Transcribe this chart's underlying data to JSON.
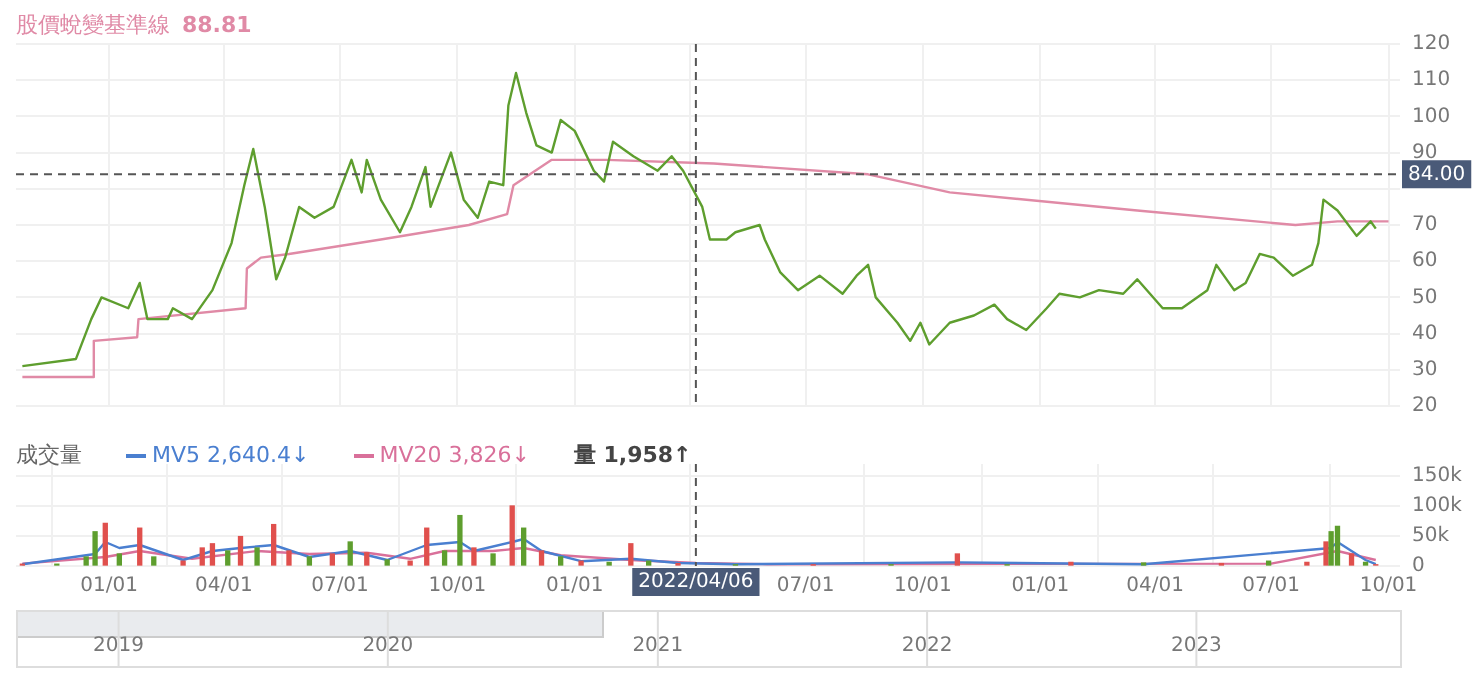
{
  "chart_data": [
    {
      "type": "line",
      "legend": "top left",
      "grid": true,
      "tick_labels": "y",
      "xlim": [
        "2020-10-20",
        "2023-10-10"
      ],
      "xticks": [
        {
          "value": "2021-01-01",
          "label": null
        },
        {
          "value": "2021-04-01",
          "label": null
        },
        {
          "value": "2021-07-01",
          "label": null
        },
        {
          "value": "2021-10-01",
          "label": null
        },
        {
          "value": "2022-01-01",
          "label": null
        },
        {
          "value": "2022-04-01",
          "label": null
        },
        {
          "value": "2022-07-01",
          "label": null
        },
        {
          "value": "2022-10-01",
          "label": null
        },
        {
          "value": "2023-01-01",
          "label": null
        },
        {
          "value": "2023-04-01",
          "label": null
        },
        {
          "value": "2023-07-01",
          "label": null
        },
        {
          "value": "2023-10-01",
          "label": null
        }
      ],
      "ylim": [
        20,
        120
      ],
      "yticks": [
        20,
        30,
        40,
        50,
        60,
        70,
        {
          "value": 80,
          "label": null
        },
        90,
        100,
        110,
        120
      ],
      "annotations": [
        "88.81"
      ],
      "ref_lines": [
        {
          "axis": "x",
          "value": "2022-04-06",
          "label": null,
          "line_style": "dashed"
        },
        {
          "axis": "y",
          "value": 84,
          "label": "84.00",
          "line_style": "dashed"
        }
      ],
      "series": [
        {
          "color": "#5e9e2e",
          "x": [
            "2020-10-25",
            "2020-12-06",
            "2020-12-18",
            "2020-12-26",
            "2021-01-16",
            "2021-01-25",
            "2021-01-31",
            "2021-02-16",
            "2021-02-20",
            "2021-03-07",
            "2021-03-23",
            "2021-04-07",
            "2021-04-17",
            "2021-04-24",
            "2021-05-03",
            "2021-05-12",
            "2021-05-19",
            "2021-05-30",
            "2021-06-11",
            "2021-06-26",
            "2021-07-10",
            "2021-07-18",
            "2021-07-22",
            "2021-08-02",
            "2021-08-17",
            "2021-08-26",
            "2021-09-06",
            "2021-09-10",
            "2021-09-26",
            "2021-10-06",
            "2021-10-17",
            "2021-10-26",
            "2021-11-06",
            "2021-11-10",
            "2021-11-16",
            "2021-11-24",
            "2021-12-02",
            "2021-12-14",
            "2021-12-21",
            "2022-01-01",
            "2022-01-16",
            "2022-01-24",
            "2022-01-31",
            "2022-02-16",
            "2022-03-07",
            "2022-03-18",
            "2022-03-27",
            "2022-04-11",
            "2022-04-17",
            "2022-04-30",
            "2022-05-07",
            "2022-05-26",
            "2022-05-30",
            "2022-06-11",
            "2022-06-25",
            "2022-07-12",
            "2022-07-30",
            "2022-08-10",
            "2022-08-19",
            "2022-08-25",
            "2022-09-11",
            "2022-09-21",
            "2022-09-29",
            "2022-10-06",
            "2022-10-22",
            "2022-11-10",
            "2022-11-26",
            "2022-12-06",
            "2022-12-21",
            "2023-01-06",
            "2023-01-16",
            "2023-02-01",
            "2023-02-16",
            "2023-03-07",
            "2023-03-18",
            "2023-04-07",
            "2023-04-22",
            "2023-05-12",
            "2023-05-19",
            "2023-06-02",
            "2023-06-11",
            "2023-06-22",
            "2023-07-03",
            "2023-07-18",
            "2023-08-02",
            "2023-08-07",
            "2023-08-11",
            "2023-08-22",
            "2023-09-06",
            "2023-09-17",
            "2023-09-21"
          ],
          "values": [
            31,
            33,
            44,
            50,
            47,
            54,
            44,
            44,
            47,
            44,
            52,
            65,
            81,
            91,
            75,
            55,
            61,
            75,
            72,
            75,
            88,
            79,
            88,
            77,
            68,
            75,
            86,
            75,
            90,
            77,
            72,
            82,
            81,
            103,
            112,
            101,
            92,
            90,
            99,
            96,
            85,
            82,
            93,
            89,
            85,
            89,
            85,
            75,
            66,
            66,
            68,
            70,
            66,
            57,
            52,
            56,
            51,
            56,
            59,
            50,
            43,
            38,
            43,
            37,
            43,
            45,
            48,
            44,
            41,
            47,
            51,
            50,
            52,
            51,
            55,
            47,
            47,
            52,
            59,
            52,
            54,
            62,
            61,
            56,
            59,
            65,
            77,
            74,
            67,
            71,
            69
          ]
        },
        {
          "name": "股價蛻變基準線",
          "color": "#e08aa6",
          "x": [
            "2020-10-25",
            "2020-12-19",
            "2020-12-20",
            "2021-01-23",
            "2021-01-24",
            "2021-04-18",
            "2021-04-19",
            "2021-04-30",
            "2021-05-22",
            "2021-08-02",
            "2021-10-10",
            "2021-11-09",
            "2021-11-14",
            "2021-12-14",
            "2022-01-26",
            "2022-04-20",
            "2022-08-19",
            "2022-10-22",
            "2023-03-18",
            "2023-07-20",
            "2023-08-22",
            "2023-10-01"
          ],
          "values": [
            28,
            28,
            38,
            39,
            44,
            47,
            58,
            61,
            62,
            66,
            70,
            73,
            81,
            88,
            88,
            87,
            84,
            79,
            74,
            70,
            71,
            71
          ]
        }
      ]
    },
    {
      "type": "bar",
      "title": "成交量",
      "legend": "top left",
      "grid": true,
      "xlim": [
        "2020-10-20",
        "2023-10-10"
      ],
      "xticks": [
        {
          "value": "2021-01-01",
          "label": "01/01"
        },
        {
          "value": "2021-04-01",
          "label": "04/01"
        },
        {
          "value": "2021-07-01",
          "label": "07/01"
        },
        {
          "value": "2021-10-01",
          "label": "10/01"
        },
        {
          "value": "2022-01-01",
          "label": "01/01"
        },
        {
          "value": "2022-07-01",
          "label": "07/01"
        },
        {
          "value": "2022-10-01",
          "label": "10/01"
        },
        {
          "value": "2023-01-01",
          "label": "01/01"
        },
        {
          "value": "2023-04-01",
          "label": "04/01"
        },
        {
          "value": "2023-07-01",
          "label": "07/01"
        },
        {
          "value": "2023-10-01",
          "label": "10/01"
        }
      ],
      "ylim": [
        0,
        170000
      ],
      "yticks": [
        0,
        {
          "value": 50000,
          "label": "50k"
        },
        {
          "value": 100000,
          "label": "100k"
        },
        {
          "value": 150000,
          "label": "150k"
        }
      ],
      "annotations": [
        "量 1,958↑"
      ],
      "x2lim": [
        "2018-08-15",
        "2023-10-04"
      ],
      "x2ticks": [
        {
          "value": "2019-01-01",
          "label": "2019"
        },
        {
          "value": "2020-01-01",
          "label": "2020"
        },
        {
          "value": "2021-01-01",
          "label": "2021"
        },
        {
          "value": "2022-01-01",
          "label": "2022"
        },
        {
          "value": "2023-01-01",
          "label": "2023"
        }
      ],
      "ref_lines": [
        {
          "axis": "x",
          "value": "2022-04-06",
          "label": "2022/04/06",
          "line_style": "dashed"
        }
      ],
      "series": [
        {
          "name": "MV5 2,640.4↓",
          "type": "line",
          "color": "#4a7fd0",
          "x": [
            "2020-10-25",
            "2020-12-21",
            "2020-12-29",
            "2021-01-09",
            "2021-01-25",
            "2021-02-28",
            "2021-03-23",
            "2021-04-14",
            "2021-05-10",
            "2021-06-07",
            "2021-07-09",
            "2021-08-07",
            "2021-09-07",
            "2021-10-03",
            "2021-10-14",
            "2021-11-13",
            "2021-11-22",
            "2021-12-06",
            "2022-01-06",
            "2022-02-14",
            "2022-03-23",
            "2022-05-07",
            "2022-10-28",
            "2023-03-23",
            "2023-08-17",
            "2023-08-22",
            "2023-09-13",
            "2023-09-21"
          ],
          "values": [
            3000,
            20000,
            40000,
            30000,
            35000,
            10000,
            25000,
            30000,
            35000,
            15000,
            25000,
            10000,
            35000,
            40000,
            25000,
            40000,
            45000,
            25000,
            8000,
            12000,
            5000,
            3000,
            6000,
            3000,
            30000,
            40000,
            10000,
            3000
          ]
        },
        {
          "name": "MV20 3,826↓",
          "type": "line",
          "color": "#d9709a",
          "x": [
            "2020-10-25",
            "2020-12-29",
            "2021-01-25",
            "2021-03-07",
            "2021-04-27",
            "2021-06-07",
            "2021-07-22",
            "2021-08-25",
            "2021-09-21",
            "2021-10-29",
            "2021-11-22",
            "2021-12-21",
            "2022-02-14",
            "2022-04-06",
            "2022-06-01",
            "2023-07-01",
            "2023-08-22",
            "2023-09-21"
          ],
          "values": [
            4000,
            15000,
            25000,
            12000,
            25000,
            20000,
            22000,
            12000,
            25000,
            25000,
            30000,
            18000,
            10000,
            5000,
            3000,
            4000,
            25000,
            10000
          ]
        },
        {
          "type": "bar",
          "x": [
            "2020-10-25",
            "2020-11-21",
            "2020-12-14",
            "2020-12-21",
            "2020-12-29",
            "2021-01-09",
            "2021-01-25",
            "2021-02-05",
            "2021-02-28",
            "2021-03-15",
            "2021-03-23",
            "2021-04-04",
            "2021-04-14",
            "2021-04-27",
            "2021-05-10",
            "2021-05-22",
            "2021-06-07",
            "2021-06-25",
            "2021-07-09",
            "2021-07-22",
            "2021-08-07",
            "2021-08-25",
            "2021-09-07",
            "2021-09-21",
            "2021-10-03",
            "2021-10-14",
            "2021-10-29",
            "2021-11-13",
            "2021-11-22",
            "2021-12-06",
            "2021-12-21",
            "2022-01-06",
            "2022-01-28",
            "2022-02-14",
            "2022-02-28",
            "2022-03-23",
            "2022-05-07",
            "2022-07-07",
            "2022-09-06",
            "2022-10-28",
            "2022-12-06",
            "2023-01-25",
            "2023-03-23",
            "2023-05-23",
            "2023-06-29",
            "2023-07-29",
            "2023-08-13",
            "2023-08-17",
            "2023-08-22",
            "2023-09-02",
            "2023-09-13",
            "2023-09-21"
          ],
          "values": [
            3000,
            3000,
            15000,
            57000,
            71000,
            20000,
            63000,
            15000,
            8000,
            30000,
            37000,
            25000,
            49000,
            30000,
            69000,
            25000,
            15000,
            20000,
            40000,
            22000,
            10000,
            8000,
            63000,
            25000,
            84000,
            30000,
            20000,
            100000,
            63000,
            25000,
            15000,
            8000,
            6000,
            37000,
            8000,
            4000,
            2000,
            2000,
            2000,
            20000,
            2000,
            6000,
            5000,
            4000,
            8000,
            6000,
            40000,
            57000,
            66000,
            20000,
            6000,
            2000
          ],
          "colors": [
            "#e0504d",
            "#5e9e2e",
            "#5e9e2e",
            "#5e9e2e",
            "#e0504d",
            "#5e9e2e",
            "#e0504d",
            "#5e9e2e",
            "#e0504d",
            "#e0504d",
            "#e0504d",
            "#5e9e2e",
            "#e0504d",
            "#5e9e2e",
            "#e0504d",
            "#e0504d",
            "#5e9e2e",
            "#e0504d",
            "#5e9e2e",
            "#e0504d",
            "#5e9e2e",
            "#e0504d",
            "#e0504d",
            "#5e9e2e",
            "#5e9e2e",
            "#e0504d",
            "#5e9e2e",
            "#e0504d",
            "#5e9e2e",
            "#e0504d",
            "#5e9e2e",
            "#e0504d",
            "#5e9e2e",
            "#e0504d",
            "#5e9e2e",
            "#e0504d",
            "#5e9e2e",
            "#e0504d",
            "#5e9e2e",
            "#e0504d",
            "#5e9e2e",
            "#e0504d",
            "#5e9e2e",
            "#e0504d",
            "#5e9e2e",
            "#e0504d",
            "#e0504d",
            "#5e9e2e",
            "#5e9e2e",
            "#e0504d",
            "#5e9e2e",
            "#e0504d"
          ]
        }
      ]
    }
  ]
}
